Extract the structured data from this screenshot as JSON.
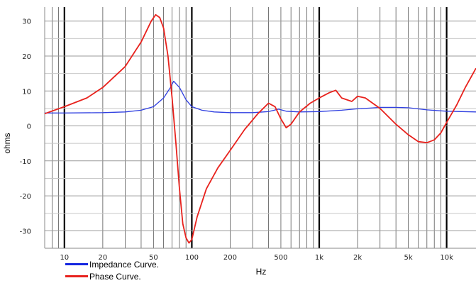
{
  "chart_data": {
    "type": "line",
    "title": "",
    "xlabel": "Hz",
    "ylabel": "ohms",
    "x_scale": "log",
    "xlim": [
      7,
      17000
    ],
    "ylim": [
      -35,
      34
    ],
    "grid": true,
    "legend_position": "bottom-left",
    "x_ticks": [
      {
        "value": 10,
        "label": "10"
      },
      {
        "value": 20,
        "label": "20"
      },
      {
        "value": 50,
        "label": "50"
      },
      {
        "value": 100,
        "label": "100"
      },
      {
        "value": 200,
        "label": "200"
      },
      {
        "value": 500,
        "label": "500"
      },
      {
        "value": 1000,
        "label": "1k"
      },
      {
        "value": 2000,
        "label": "2k"
      },
      {
        "value": 5000,
        "label": "5k"
      },
      {
        "value": 10000,
        "label": "10k"
      }
    ],
    "y_ticks": [
      30,
      20,
      10,
      0,
      -10,
      -20,
      -30
    ],
    "series": [
      {
        "name": "Impedance Curve.",
        "color": "#2f3fe0",
        "points": [
          [
            7,
            3.7
          ],
          [
            10,
            3.7
          ],
          [
            20,
            3.8
          ],
          [
            30,
            4
          ],
          [
            40,
            4.5
          ],
          [
            50,
            5.5
          ],
          [
            60,
            8
          ],
          [
            68,
            11
          ],
          [
            72,
            12.8
          ],
          [
            80,
            11
          ],
          [
            90,
            7.5
          ],
          [
            100,
            5.5
          ],
          [
            120,
            4.5
          ],
          [
            150,
            4
          ],
          [
            200,
            3.8
          ],
          [
            300,
            3.8
          ],
          [
            400,
            4.1
          ],
          [
            480,
            4.8
          ],
          [
            550,
            4.2
          ],
          [
            700,
            4
          ],
          [
            1000,
            4.1
          ],
          [
            1500,
            4.5
          ],
          [
            2000,
            4.9
          ],
          [
            2500,
            5.1
          ],
          [
            3000,
            5.3
          ],
          [
            4000,
            5.3
          ],
          [
            5000,
            5.2
          ],
          [
            7000,
            4.6
          ],
          [
            10000,
            4.2
          ],
          [
            17000,
            4
          ]
        ]
      },
      {
        "name": "Phase Curve.",
        "color": "#e8221d",
        "points": [
          [
            7,
            3.5
          ],
          [
            10,
            5.5
          ],
          [
            15,
            8
          ],
          [
            20,
            11
          ],
          [
            30,
            17
          ],
          [
            40,
            24
          ],
          [
            48,
            30
          ],
          [
            52,
            31.8
          ],
          [
            56,
            31
          ],
          [
            60,
            28
          ],
          [
            65,
            20
          ],
          [
            70,
            8
          ],
          [
            75,
            -5
          ],
          [
            80,
            -18
          ],
          [
            85,
            -28
          ],
          [
            90,
            -32
          ],
          [
            95,
            -33.5
          ],
          [
            100,
            -32.5
          ],
          [
            110,
            -26
          ],
          [
            130,
            -18
          ],
          [
            160,
            -12
          ],
          [
            200,
            -7
          ],
          [
            260,
            -1
          ],
          [
            330,
            3.5
          ],
          [
            400,
            6.5
          ],
          [
            450,
            5.5
          ],
          [
            500,
            2
          ],
          [
            550,
            -0.5
          ],
          [
            600,
            0.5
          ],
          [
            700,
            4
          ],
          [
            850,
            6.5
          ],
          [
            1000,
            8
          ],
          [
            1200,
            9.5
          ],
          [
            1350,
            10.2
          ],
          [
            1500,
            8
          ],
          [
            1800,
            7
          ],
          [
            2000,
            8.5
          ],
          [
            2300,
            8
          ],
          [
            3000,
            5
          ],
          [
            4000,
            0.5
          ],
          [
            5000,
            -2.5
          ],
          [
            6000,
            -4.5
          ],
          [
            7000,
            -4.8
          ],
          [
            8000,
            -4
          ],
          [
            9000,
            -2
          ],
          [
            10000,
            1
          ],
          [
            12000,
            6
          ],
          [
            14000,
            11
          ],
          [
            17000,
            16.5
          ]
        ]
      }
    ]
  }
}
